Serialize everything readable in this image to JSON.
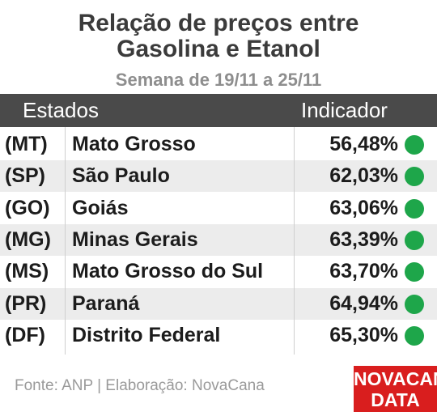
{
  "header": {
    "title_line1": "Relação de preços entre",
    "title_line2": "Gasolina e Etanol",
    "subtitle": "Semana de 19/11 a 25/11"
  },
  "table": {
    "columns": [
      "Estados",
      "Indicador"
    ],
    "indicator_color": "#1ea64a",
    "rows": [
      [
        "(MT)",
        "Mato Grosso",
        "56,48%"
      ],
      [
        "(SP)",
        "São Paulo",
        "62,03%"
      ],
      [
        "(GO)",
        "Goiás",
        "63,06%"
      ],
      [
        "(MG)",
        "Minas Gerais",
        "63,39%"
      ],
      [
        "(MS)",
        "Mato Grosso do Sul",
        "63,70%"
      ],
      [
        "(PR)",
        "Paraná",
        "64,94%"
      ],
      [
        "(DF)",
        "Distrito Federal",
        "65,30%"
      ]
    ]
  },
  "footer": {
    "source": "Fonte: ANP | Elaboração: NovaCana",
    "logo_line1": "NOVACANA",
    "logo_line2": "DATA"
  }
}
